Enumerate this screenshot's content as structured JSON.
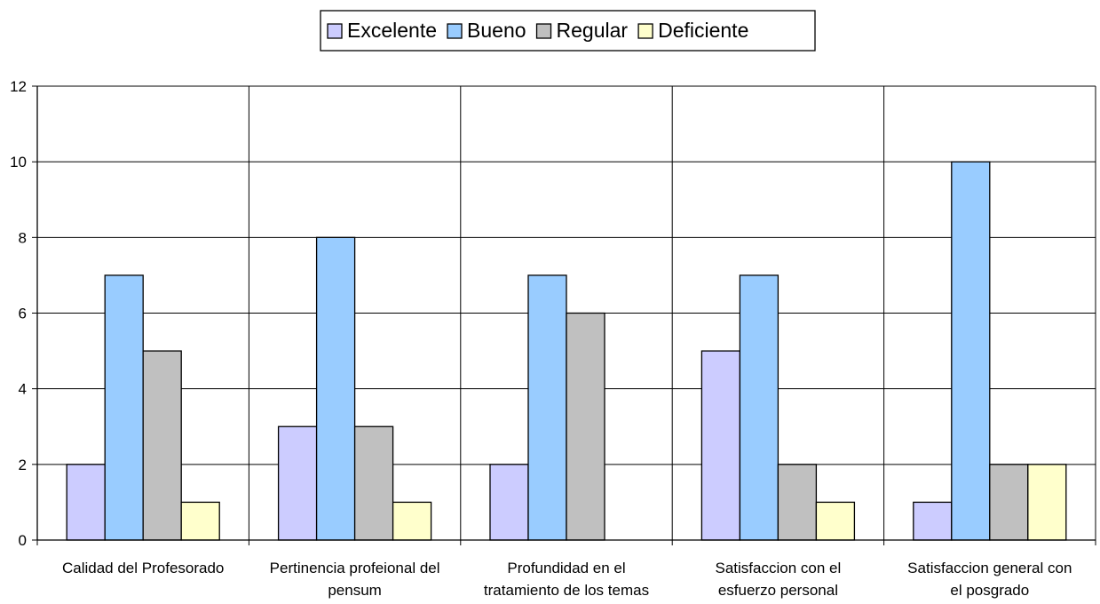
{
  "chart_data": {
    "type": "bar",
    "categories": [
      [
        "Calidad del Profesorado"
      ],
      [
        "Pertinencia profeional del",
        "pensum"
      ],
      [
        "Profundidad en el",
        "tratamiento de los temas"
      ],
      [
        "Satisfaccion con el",
        "esfuerzo personal"
      ],
      [
        "Satisfaccion general con",
        "el posgrado"
      ]
    ],
    "series": [
      {
        "name": "Excelente",
        "color": "#ccccff",
        "values": [
          2,
          3,
          2,
          5,
          1
        ]
      },
      {
        "name": "Bueno",
        "color": "#99ccff",
        "values": [
          7,
          8,
          7,
          7,
          10
        ]
      },
      {
        "name": "Regular",
        "color": "#c0c0c0",
        "values": [
          5,
          3,
          6,
          2,
          2
        ]
      },
      {
        "name": "Deficiente",
        "color": "#ffffcc",
        "values": [
          1,
          1,
          0,
          1,
          2
        ]
      }
    ],
    "ylim": [
      0,
      12
    ],
    "yticks": [
      "0",
      "2",
      "4",
      "6",
      "8",
      "10",
      "12"
    ],
    "grid": true,
    "legend_position": "top-center"
  }
}
